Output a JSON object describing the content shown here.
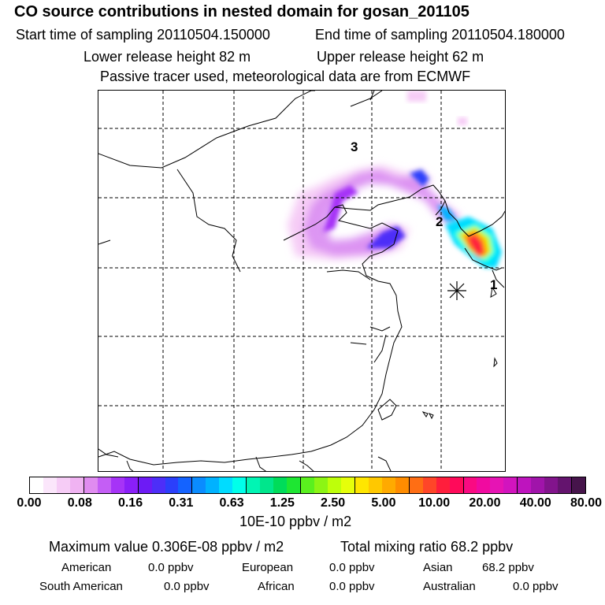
{
  "header": {
    "title": "CO  source contributions in nested domain for gosan_201105",
    "start": "Start time of sampling 20110504.150000",
    "end": "End time of sampling 20110504.180000",
    "lower": "Lower release height   82 m",
    "upper": "Upper release height   62 m",
    "tracer": "Passive tracer used, meteorological data are from ECMWF"
  },
  "map": {
    "labels": {
      "l1": "1",
      "l2": "2",
      "l3": "3"
    },
    "station_marker": "asterisk-icon"
  },
  "colorbar": {
    "ticks": [
      "0.00",
      "0.08",
      "0.16",
      "0.31",
      "0.63",
      "1.25",
      "2.50",
      "5.00",
      "10.00",
      "20.00",
      "40.00",
      "80.00"
    ],
    "colors": [
      "#ffffff",
      "#fbe6fb",
      "#f6ccf6",
      "#f0b3f2",
      "#e08cf0",
      "#c45ef5",
      "#a633f7",
      "#8a1ff8",
      "#6d1bf5",
      "#4d2ef8",
      "#2b3ffb",
      "#1463ff",
      "#0a8cff",
      "#00b2ff",
      "#00dcff",
      "#00ffea",
      "#00f5b4",
      "#00e68c",
      "#00dc5a",
      "#1ee632",
      "#5af01e",
      "#8cf514",
      "#beff0a",
      "#e6ff0a",
      "#ffe600",
      "#ffc800",
      "#ffaa00",
      "#ff8c00",
      "#ff6e14",
      "#ff4628",
      "#ff1e3c",
      "#ff0a5a",
      "#fa0a82",
      "#f00aa0",
      "#e614b4",
      "#d214be",
      "#be14be",
      "#a014aa",
      "#82148c",
      "#64146e",
      "#46144b"
    ],
    "units": "10E-10 ppbv / m2"
  },
  "summary": {
    "max": "Maximum value  0.306E-08 ppbv / m2",
    "total": "Total mixing ratio       68.2 ppbv",
    "rows": [
      [
        {
          "label": "American",
          "value": "0.0 ppbv"
        },
        {
          "label": "European",
          "value": "0.0 ppbv"
        },
        {
          "label": "Asian",
          "value": "68.2 ppbv"
        }
      ],
      [
        {
          "label": "South American",
          "value": "0.0 ppbv"
        },
        {
          "label": "African",
          "value": "0.0 ppbv"
        },
        {
          "label": "Australian",
          "value": "0.0 ppbv"
        }
      ]
    ]
  }
}
